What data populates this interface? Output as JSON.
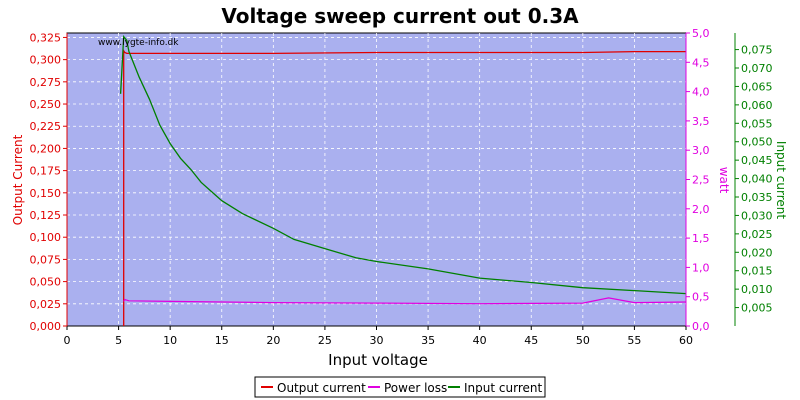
{
  "chart_data": {
    "type": "line",
    "title": "Voltage sweep current out 0.3A",
    "watermark": "www.lygte-info.dk",
    "xlabel": "Input voltage",
    "xlim": [
      0,
      60
    ],
    "xticks": [
      0,
      5,
      10,
      15,
      20,
      25,
      30,
      35,
      40,
      45,
      50,
      55,
      60
    ],
    "y_left": {
      "label": "Output Current",
      "color": "#e00000",
      "lim": [
        0,
        0.33
      ],
      "ticks": [
        "0,000",
        "0,025",
        "0,050",
        "0,075",
        "0,100",
        "0,125",
        "0,150",
        "0,175",
        "0,200",
        "0,225",
        "0,250",
        "0,275",
        "0,300",
        "0,325"
      ]
    },
    "y_right1": {
      "label": "watt",
      "color": "#e000e0",
      "lim": [
        0,
        5
      ],
      "ticks": [
        "0,0",
        "0,5",
        "1,0",
        "1,5",
        "2,0",
        "2,5",
        "3,0",
        "3,5",
        "4,0",
        "4,5",
        "5,0"
      ]
    },
    "y_right2": {
      "label": "Input current",
      "color": "#008000",
      "lim": [
        0,
        0.0795
      ],
      "ticks": [
        "0,005",
        "0,010",
        "0,015",
        "0,020",
        "0,025",
        "0,030",
        "0,035",
        "0,040",
        "0,045",
        "0,050",
        "0,055",
        "0,060",
        "0,065",
        "0,070",
        "0,075"
      ]
    },
    "series": [
      {
        "name": "Output current",
        "axis": "y_left",
        "color": "#e00000",
        "x": [
          5.5,
          5.5,
          5.6,
          5.8,
          6,
          10,
          20,
          30,
          40,
          45,
          50,
          55,
          60
        ],
        "y": [
          0,
          0.31,
          0.308,
          0.307,
          0.307,
          0.307,
          0.307,
          0.308,
          0.308,
          0.308,
          0.308,
          0.309,
          0.309
        ]
      },
      {
        "name": "Power loss",
        "axis": "y_right1",
        "color": "#e000e0",
        "x": [
          5.5,
          5.6,
          6,
          10,
          20,
          30,
          40,
          50,
          52.5,
          55,
          60
        ],
        "y": [
          0.42,
          0.45,
          0.43,
          0.42,
          0.4,
          0.39,
          0.38,
          0.39,
          0.48,
          0.4,
          0.41
        ]
      },
      {
        "name": "Input current",
        "axis": "y_right2",
        "color": "#008000",
        "x": [
          5.2,
          5.5,
          5.8,
          6,
          7,
          8,
          9,
          10,
          11,
          12,
          13,
          14,
          15,
          17,
          20,
          22,
          25,
          28,
          30,
          35,
          40,
          45,
          50,
          55,
          60
        ],
        "y": [
          0.063,
          0.0785,
          0.0775,
          0.0745,
          0.0675,
          0.0615,
          0.0545,
          0.0495,
          0.0455,
          0.0425,
          0.039,
          0.0365,
          0.034,
          0.0305,
          0.0265,
          0.0235,
          0.021,
          0.0185,
          0.0175,
          0.0155,
          0.013,
          0.0118,
          0.0104,
          0.0096,
          0.0088
        ]
      }
    ],
    "legend": {
      "placement": "bottom-center",
      "entries": [
        "Output current",
        "Power loss",
        "Input current"
      ]
    },
    "grid": true,
    "plot_background": "#aab0ef"
  }
}
